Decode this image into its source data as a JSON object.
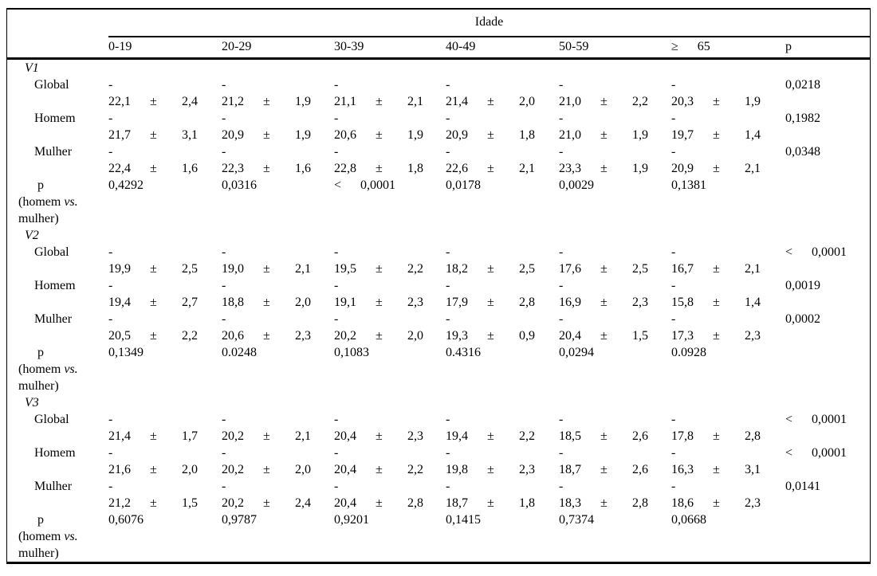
{
  "table": {
    "header": {
      "group_label": "Idade",
      "columns": [
        "0-19",
        "20-29",
        "30-39",
        "40-49",
        "50-59",
        "≥      65",
        "p"
      ]
    },
    "dash": "-",
    "pm": "±",
    "p_label": "p",
    "p_sub_pre": "(homem ",
    "p_sub_vs": "vs.",
    "p_sub_end": "mulher)",
    "groups": [
      {
        "name": "V1",
        "rows": [
          {
            "label": "Global",
            "p": "0,0218",
            "cells": [
              {
                "m": "22,1",
                "s": "2,4"
              },
              {
                "m": "21,2",
                "s": "1,9"
              },
              {
                "m": "21,1",
                "s": "2,1"
              },
              {
                "m": "21,4",
                "s": "2,0"
              },
              {
                "m": "21,0",
                "s": "2,2"
              },
              {
                "m": "20,3",
                "s": "1,9"
              }
            ]
          },
          {
            "label": "Homem",
            "p": "0,1982",
            "cells": [
              {
                "m": "21,7",
                "s": "3,1"
              },
              {
                "m": "20,9",
                "s": "1,9"
              },
              {
                "m": "20,6",
                "s": "1,9"
              },
              {
                "m": "20,9",
                "s": "1,8"
              },
              {
                "m": "21,0",
                "s": "1,9"
              },
              {
                "m": "19,7",
                "s": "1,4"
              }
            ]
          },
          {
            "label": "Mulher",
            "p": "0,0348",
            "cells": [
              {
                "m": "22,4",
                "s": "1,6"
              },
              {
                "m": "22,3",
                "s": "1,6"
              },
              {
                "m": "22,8",
                "s": "1,8"
              },
              {
                "m": "22,6",
                "s": "2,1"
              },
              {
                "m": "23,3",
                "s": "1,9"
              },
              {
                "m": "20,9",
                "s": "2,1"
              }
            ]
          }
        ],
        "p_values": [
          "0,4292",
          "0,0316",
          "<      0,0001",
          "0,0178",
          "0,0029",
          "0,1381"
        ]
      },
      {
        "name": "V2",
        "rows": [
          {
            "label": "Global",
            "p": "<      0,0001",
            "cells": [
              {
                "m": "19,9",
                "s": "2,5"
              },
              {
                "m": "19,0",
                "s": "2,1"
              },
              {
                "m": "19,5",
                "s": "2,2"
              },
              {
                "m": "18,2",
                "s": "2,5"
              },
              {
                "m": "17,6",
                "s": "2,5"
              },
              {
                "m": "16,7",
                "s": "2,1"
              }
            ]
          },
          {
            "label": "Homem",
            "p": "0,0019",
            "cells": [
              {
                "m": "19,4",
                "s": "2,7"
              },
              {
                "m": "18,8",
                "s": "2,0"
              },
              {
                "m": "19,1",
                "s": "2,3"
              },
              {
                "m": "17,9",
                "s": "2,8"
              },
              {
                "m": "16,9",
                "s": "2,3"
              },
              {
                "m": "15,8",
                "s": "1,4"
              }
            ]
          },
          {
            "label": "Mulher",
            "p": "0,0002",
            "cells": [
              {
                "m": "20,5",
                "s": "2,2"
              },
              {
                "m": "20,6",
                "s": "2,3"
              },
              {
                "m": "20,2",
                "s": "2,0"
              },
              {
                "m": "19,3",
                "s": "0,9"
              },
              {
                "m": "20,4",
                "s": "1,5"
              },
              {
                "m": "17,3",
                "s": "2,3"
              }
            ]
          }
        ],
        "p_values": [
          "0,1349",
          "0.0248",
          "0,1083",
          "0.4316",
          "0,0294",
          "0.0928"
        ]
      },
      {
        "name": "V3",
        "rows": [
          {
            "label": "Global",
            "p": "<      0,0001",
            "cells": [
              {
                "m": "21,4",
                "s": "1,7"
              },
              {
                "m": "20,2",
                "s": "2,1"
              },
              {
                "m": "20,4",
                "s": "2,3"
              },
              {
                "m": "19,4",
                "s": "2,2"
              },
              {
                "m": "18,5",
                "s": "2,6"
              },
              {
                "m": "17,8",
                "s": "2,8"
              }
            ]
          },
          {
            "label": "Homem",
            "p": "<      0,0001",
            "cells": [
              {
                "m": "21,6",
                "s": "2,0"
              },
              {
                "m": "20,2",
                "s": "2,0"
              },
              {
                "m": "20,4",
                "s": "2,2"
              },
              {
                "m": "19,8",
                "s": "2,3"
              },
              {
                "m": "18,7",
                "s": "2,6"
              },
              {
                "m": "16,3",
                "s": "3,1"
              }
            ]
          },
          {
            "label": "Mulher",
            "p": "0,0141",
            "cells": [
              {
                "m": "21,2",
                "s": "1,5"
              },
              {
                "m": "20,2",
                "s": "2,4"
              },
              {
                "m": "20,4",
                "s": "2,8"
              },
              {
                "m": "18,7",
                "s": "1,8"
              },
              {
                "m": "18,3",
                "s": "2,8"
              },
              {
                "m": "18,6",
                "s": "2,3"
              }
            ]
          }
        ],
        "p_values": [
          "0,6076",
          "0,9787",
          "0,9201",
          "0,1415",
          "0,7374",
          "0,0668"
        ]
      }
    ]
  }
}
